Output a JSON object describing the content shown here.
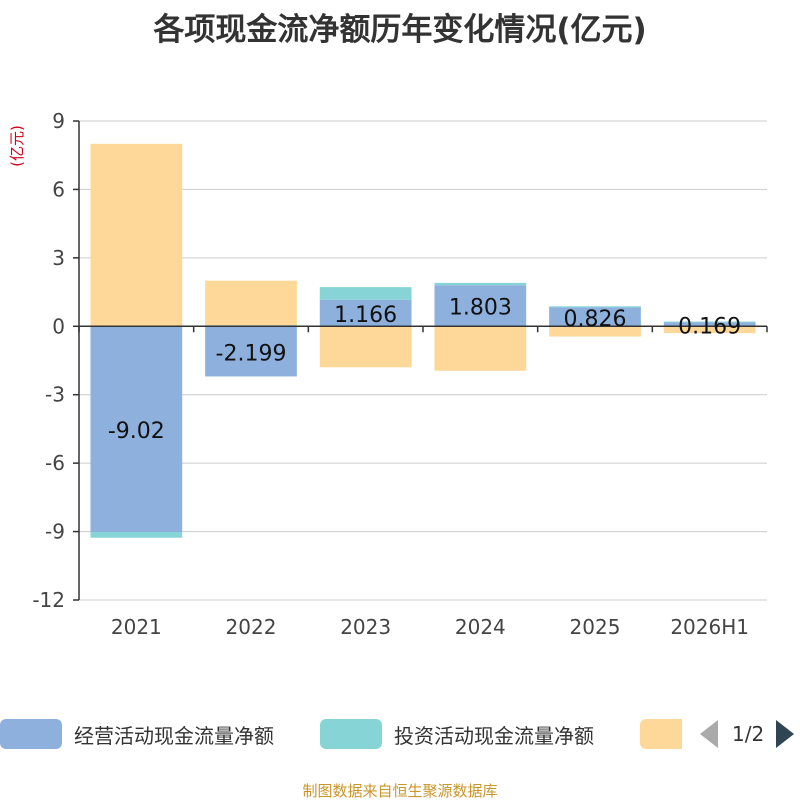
{
  "chart_data": {
    "type": "bar",
    "stacked": true,
    "title": "各项现金流净额历年变化情况(亿元)",
    "ylabel": "(亿元)",
    "ylim": [
      -12,
      9
    ],
    "yticks": [
      9,
      6,
      3,
      0,
      -3,
      -6,
      -9,
      -12
    ],
    "grid": true,
    "legend_position": "bottom",
    "categories": [
      "2021",
      "2022",
      "2023",
      "2024",
      "2025",
      "2026H1"
    ],
    "series": [
      {
        "name": "经营活动现金流量净额",
        "color": "#8eb0dd",
        "values": [
          -9.02,
          -2.199,
          1.166,
          1.803,
          0.826,
          0.169
        ],
        "labels": [
          "-9.02",
          "-2.199",
          "1.166",
          "1.803",
          "0.826",
          "0.169"
        ]
      },
      {
        "name": "投资活动现金流量净额",
        "color": "#86d4d6",
        "values": [
          -0.25,
          0.05,
          0.55,
          0.1,
          0.05,
          0.04
        ]
      },
      {
        "name": "",
        "color": "#fed898",
        "values": [
          8.0,
          1.95,
          -1.8,
          -1.95,
          -0.45,
          -0.3
        ]
      }
    ]
  },
  "legend": {
    "pager": "1/2"
  },
  "source": "制图数据来自恒生聚源数据库"
}
